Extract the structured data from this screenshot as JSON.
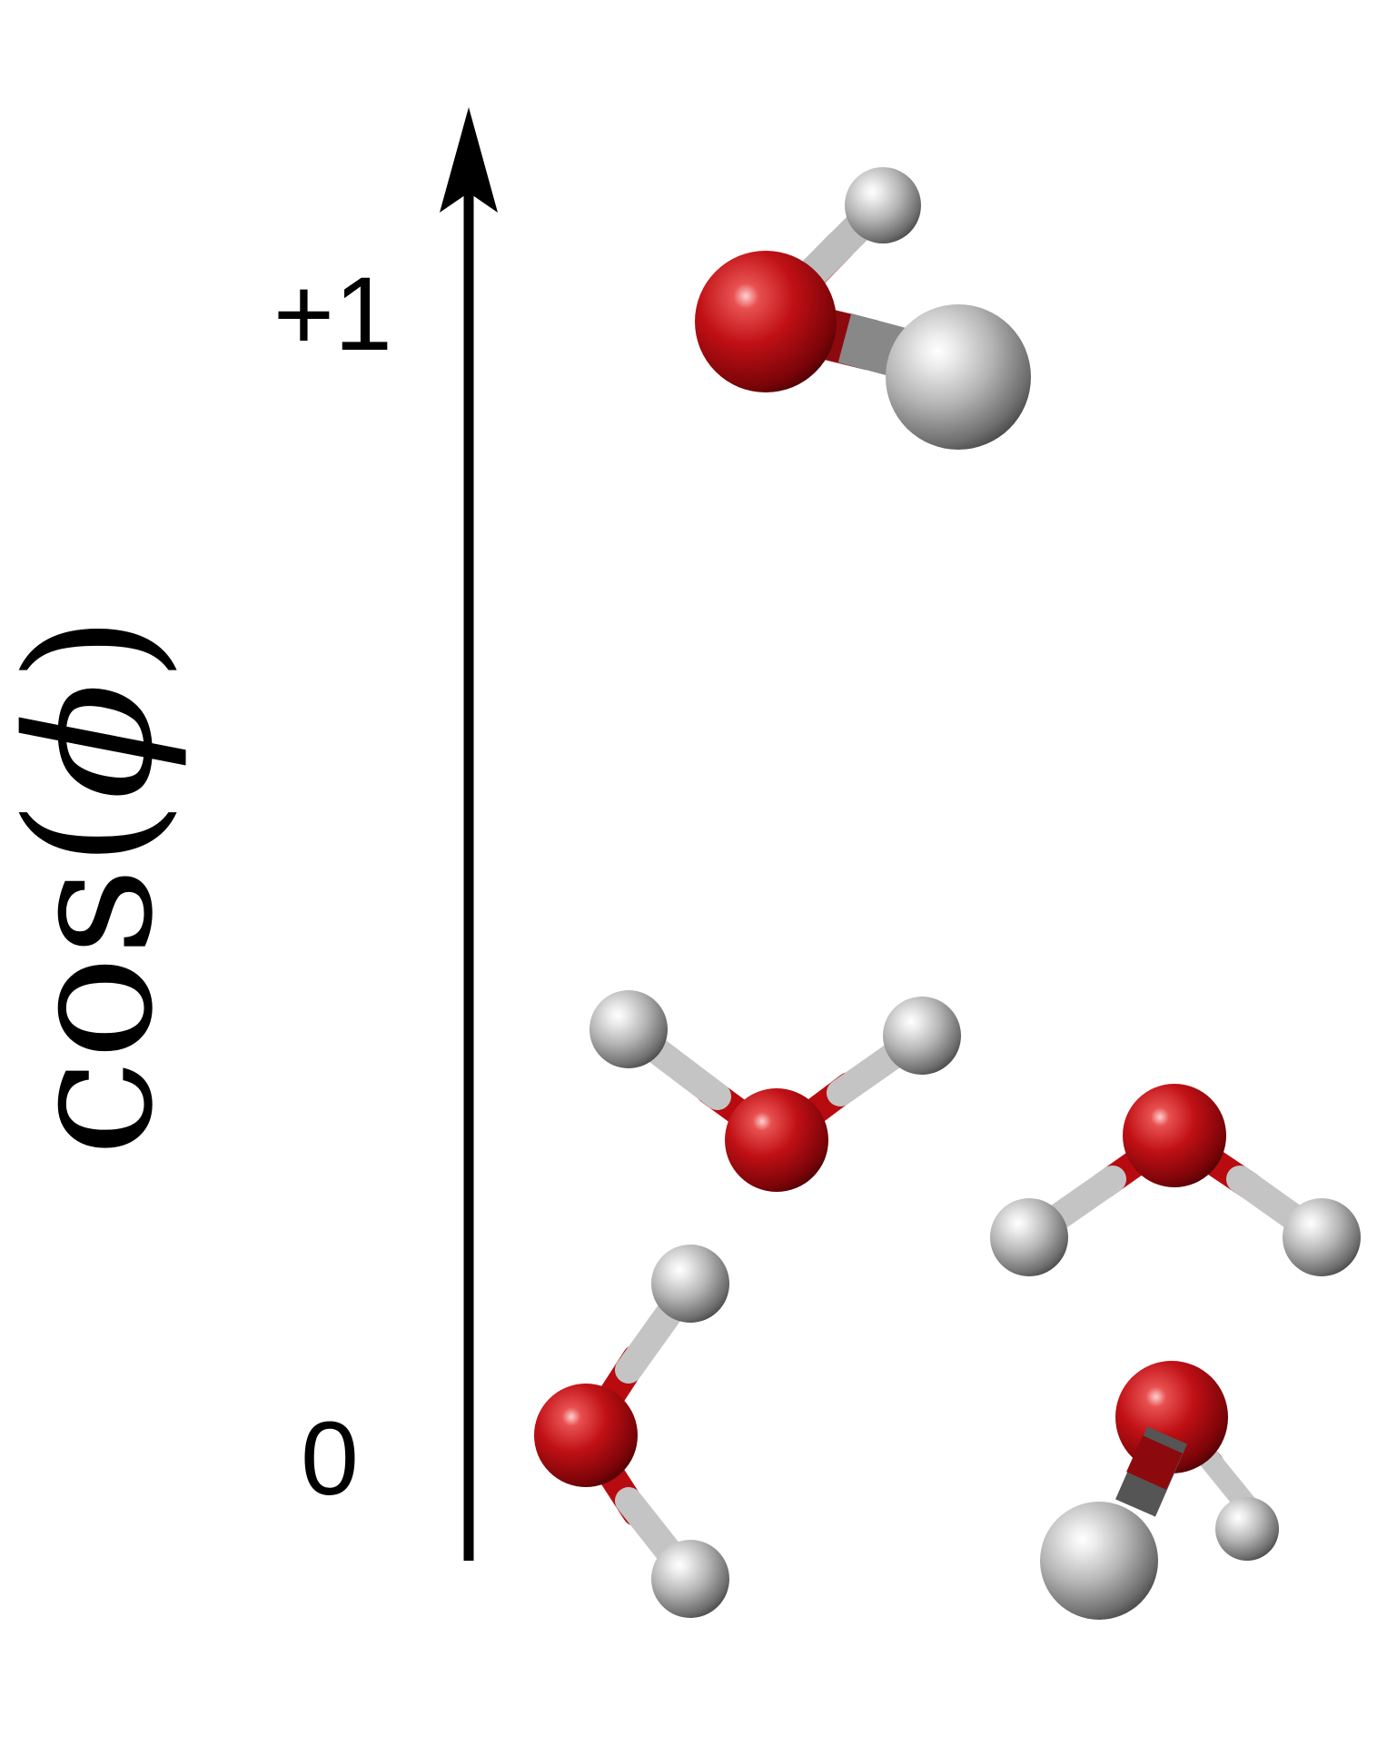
{
  "diagram": {
    "axis": {
      "label_cos": "cos",
      "label_open": "(",
      "label_phi": "ϕ",
      "label_close": ")",
      "tick_top": "+1",
      "tick_bottom": "0",
      "range": [
        0,
        1
      ]
    },
    "colors": {
      "oxygen": "#b80b10",
      "hydrogen": "#a8a8a8",
      "axis": "#000000"
    },
    "molecules": [
      {
        "name": "water-molecule-top",
        "atoms": [
          "O",
          "H",
          "H"
        ]
      },
      {
        "name": "water-molecule-middle-left",
        "atoms": [
          "O",
          "H",
          "H"
        ]
      },
      {
        "name": "water-molecule-middle-right",
        "atoms": [
          "O",
          "H",
          "H"
        ]
      },
      {
        "name": "water-molecule-bottom-left",
        "atoms": [
          "O",
          "H",
          "H"
        ]
      },
      {
        "name": "water-molecule-bottom-right",
        "atoms": [
          "O",
          "H",
          "H"
        ]
      }
    ]
  }
}
